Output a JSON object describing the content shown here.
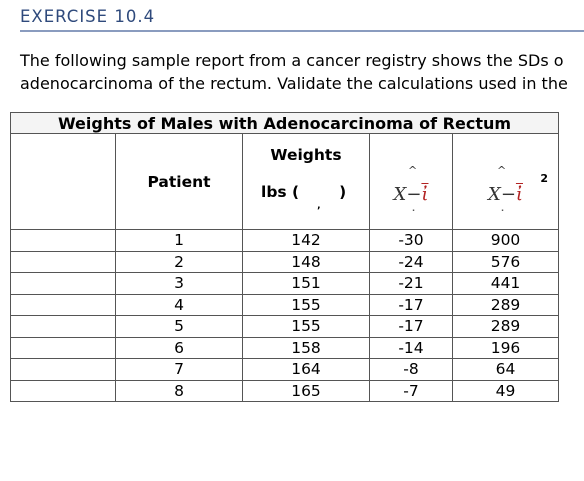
{
  "exercise": {
    "title": "EXERCISE 10.4"
  },
  "intro": {
    "line1": "The following sample report from a cancer registry shows the SDs o",
    "line2": "adenocarcinoma of the rectum. Validate the calculations used in the"
  },
  "table": {
    "caption": "Weights of Males with Adenocarcinoma of Rectum",
    "headers": {
      "patient": "Patient",
      "weights": "Weights",
      "lbs_open": "lbs (",
      "lbs_mid": ",",
      "lbs_close": ")",
      "deviation": "X−",
      "deviation_mean": "ἰ",
      "squared_deviation": "X−",
      "squared_mean": "ἰ",
      "hat": "^",
      "exponent": "2"
    },
    "rows": [
      {
        "patient": "1",
        "weight": "142",
        "deviation": "-30",
        "squared": "900"
      },
      {
        "patient": "2",
        "weight": "148",
        "deviation": "-24",
        "squared": "576"
      },
      {
        "patient": "3",
        "weight": "151",
        "deviation": "-21",
        "squared": "441"
      },
      {
        "patient": "4",
        "weight": "155",
        "deviation": "-17",
        "squared": "289"
      },
      {
        "patient": "5",
        "weight": "155",
        "deviation": "-17",
        "squared": "289"
      },
      {
        "patient": "6",
        "weight": "158",
        "deviation": "-14",
        "squared": "196"
      },
      {
        "patient": "7",
        "weight": "164",
        "deviation": "-8",
        "squared": "64"
      },
      {
        "patient": "8",
        "weight": "165",
        "deviation": "-7",
        "squared": "49"
      }
    ]
  },
  "colors": {
    "title": "#2f4a7c",
    "rule": "#8a9cbf",
    "mean_symbol": "#b22222"
  }
}
